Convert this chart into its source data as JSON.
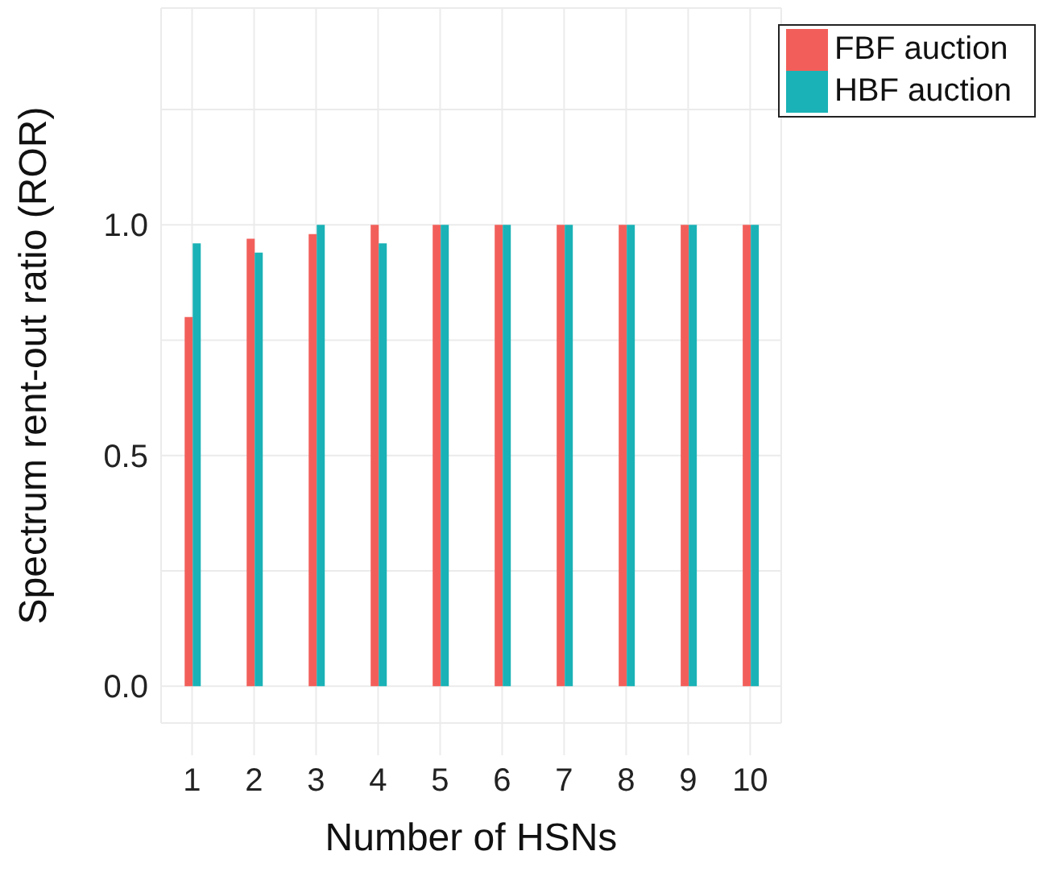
{
  "chart_data": {
    "type": "bar",
    "xlabel": "Number of HSNs",
    "ylabel": "Spectrum rent-out ratio (ROR)",
    "categories": [
      "1",
      "2",
      "3",
      "4",
      "5",
      "6",
      "7",
      "8",
      "9",
      "10"
    ],
    "series": [
      {
        "name": "FBF auction",
        "color": "#f25f5a",
        "values": [
          0.8,
          0.97,
          0.98,
          1.0,
          1.0,
          1.0,
          1.0,
          1.0,
          1.0,
          1.0
        ]
      },
      {
        "name": "HBF auction",
        "color": "#1ab2b6",
        "values": [
          0.96,
          0.94,
          1.0,
          0.96,
          1.0,
          1.0,
          1.0,
          1.0,
          1.0,
          1.0
        ]
      }
    ],
    "ylim": [
      -0.08,
      1.47
    ],
    "yticks": [
      {
        "value": 0,
        "label": "0.0"
      },
      {
        "value": 0.25,
        "label": null
      },
      {
        "value": 0.5,
        "label": "0.5"
      },
      {
        "value": 0.75,
        "label": null
      },
      {
        "value": 1,
        "label": "1.0"
      },
      {
        "value": 1.25,
        "label": null
      }
    ],
    "grid": true,
    "legend": "top right"
  }
}
